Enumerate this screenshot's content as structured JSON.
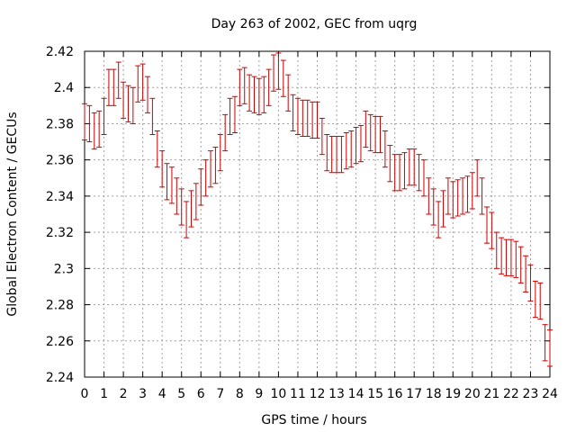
{
  "chart_data": {
    "type": "scatter",
    "title": "Day 263 of 2002, GEC from uqrg",
    "xlabel": "GPS time / hours",
    "ylabel": "Global Electron Content / GECUs",
    "xlim": [
      0,
      24
    ],
    "ylim": [
      2.24,
      2.42
    ],
    "xticks": [
      0,
      1,
      2,
      3,
      4,
      5,
      6,
      7,
      8,
      9,
      10,
      11,
      12,
      13,
      14,
      15,
      16,
      17,
      18,
      19,
      20,
      21,
      22,
      23,
      24
    ],
    "yticks": [
      2.24,
      2.26,
      2.28,
      2.3,
      2.32,
      2.34,
      2.36,
      2.38,
      2.4,
      2.42
    ],
    "ytick_labels": [
      "2.24",
      "2.26",
      "2.28",
      "2.3",
      "2.32",
      "2.34",
      "2.36",
      "2.38",
      "2.4",
      "2.42"
    ],
    "grid": true,
    "series_color": "#cc0000",
    "error": 0.01,
    "x": [
      0,
      0.25,
      0.5,
      0.75,
      1,
      1.25,
      1.5,
      1.75,
      2,
      2.25,
      2.5,
      2.75,
      3,
      3.25,
      3.5,
      3.75,
      4,
      4.25,
      4.5,
      4.75,
      5,
      5.25,
      5.5,
      5.75,
      6,
      6.25,
      6.5,
      6.75,
      7,
      7.25,
      7.5,
      7.75,
      8,
      8.25,
      8.5,
      8.75,
      9,
      9.25,
      9.5,
      9.75,
      10,
      10.25,
      10.5,
      10.75,
      11,
      11.25,
      11.5,
      11.75,
      12,
      12.25,
      12.5,
      12.75,
      13,
      13.25,
      13.5,
      13.75,
      14,
      14.25,
      14.5,
      14.75,
      15,
      15.25,
      15.5,
      15.75,
      16,
      16.25,
      16.5,
      16.75,
      17,
      17.25,
      17.5,
      17.75,
      18,
      18.25,
      18.5,
      18.75,
      19,
      19.25,
      19.5,
      19.75,
      20,
      20.25,
      20.5,
      20.75,
      21,
      21.25,
      21.5,
      21.75,
      22,
      22.25,
      22.5,
      22.75,
      23,
      23.25,
      23.5,
      23.75,
      24
    ],
    "y": [
      2.381,
      2.38,
      2.376,
      2.377,
      2.384,
      2.4,
      2.4,
      2.404,
      2.393,
      2.391,
      2.39,
      2.402,
      2.403,
      2.396,
      2.384,
      2.366,
      2.355,
      2.348,
      2.346,
      2.34,
      2.334,
      2.327,
      2.333,
      2.337,
      2.345,
      2.35,
      2.355,
      2.357,
      2.364,
      2.375,
      2.384,
      2.385,
      2.4,
      2.401,
      2.397,
      2.396,
      2.395,
      2.396,
      2.4,
      2.408,
      2.409,
      2.405,
      2.397,
      2.386,
      2.384,
      2.383,
      2.383,
      2.382,
      2.382,
      2.373,
      2.364,
      2.363,
      2.363,
      2.363,
      2.365,
      2.366,
      2.368,
      2.369,
      2.377,
      2.375,
      2.374,
      2.374,
      2.366,
      2.358,
      2.353,
      2.353,
      2.354,
      2.356,
      2.356,
      2.353,
      2.35,
      2.34,
      2.334,
      2.327,
      2.333,
      2.34,
      2.338,
      2.339,
      2.34,
      2.341,
      2.343,
      2.35,
      2.34,
      2.324,
      2.321,
      2.31,
      2.307,
      2.306,
      2.306,
      2.305,
      2.302,
      2.297,
      2.292,
      2.283,
      2.282,
      2.259,
      2.256
    ]
  }
}
